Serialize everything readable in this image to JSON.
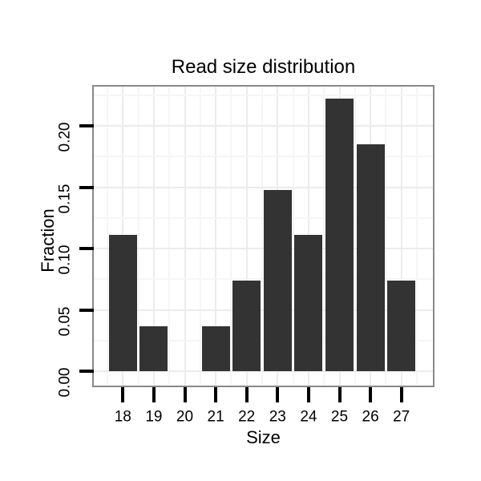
{
  "chart_data": {
    "type": "bar",
    "title": "Read size distribution",
    "xlabel": "Size",
    "ylabel": "Fraction",
    "categories": [
      "18",
      "19",
      "20",
      "21",
      "22",
      "23",
      "24",
      "25",
      "26",
      "27"
    ],
    "values": [
      0.1111,
      0.037,
      0,
      0.037,
      0.0741,
      0.1481,
      0.1111,
      0.2222,
      0.1852,
      0.0741
    ],
    "x_tick_labels": [
      "18",
      "19",
      "20",
      "21",
      "22",
      "23",
      "24",
      "25",
      "26",
      "27"
    ],
    "y_tick_labels": [
      "0.00",
      "0.05",
      "0.10",
      "0.15",
      "0.20"
    ],
    "y_tick_values": [
      0,
      0.05,
      0.1,
      0.15,
      0.2
    ],
    "y_minor_values": [
      0.025,
      0.075,
      0.125,
      0.175,
      0.225
    ],
    "ylim": [
      -0.0117,
      0.2322
    ],
    "grid": "major+minor",
    "legend": "none",
    "colors": {
      "bar": "#333333",
      "panel_border": "#898989",
      "grid_major": "#ececec",
      "grid_minor": "#f6f6f6",
      "tick": "#000000",
      "text": "#000000",
      "background": "#ffffff"
    }
  }
}
